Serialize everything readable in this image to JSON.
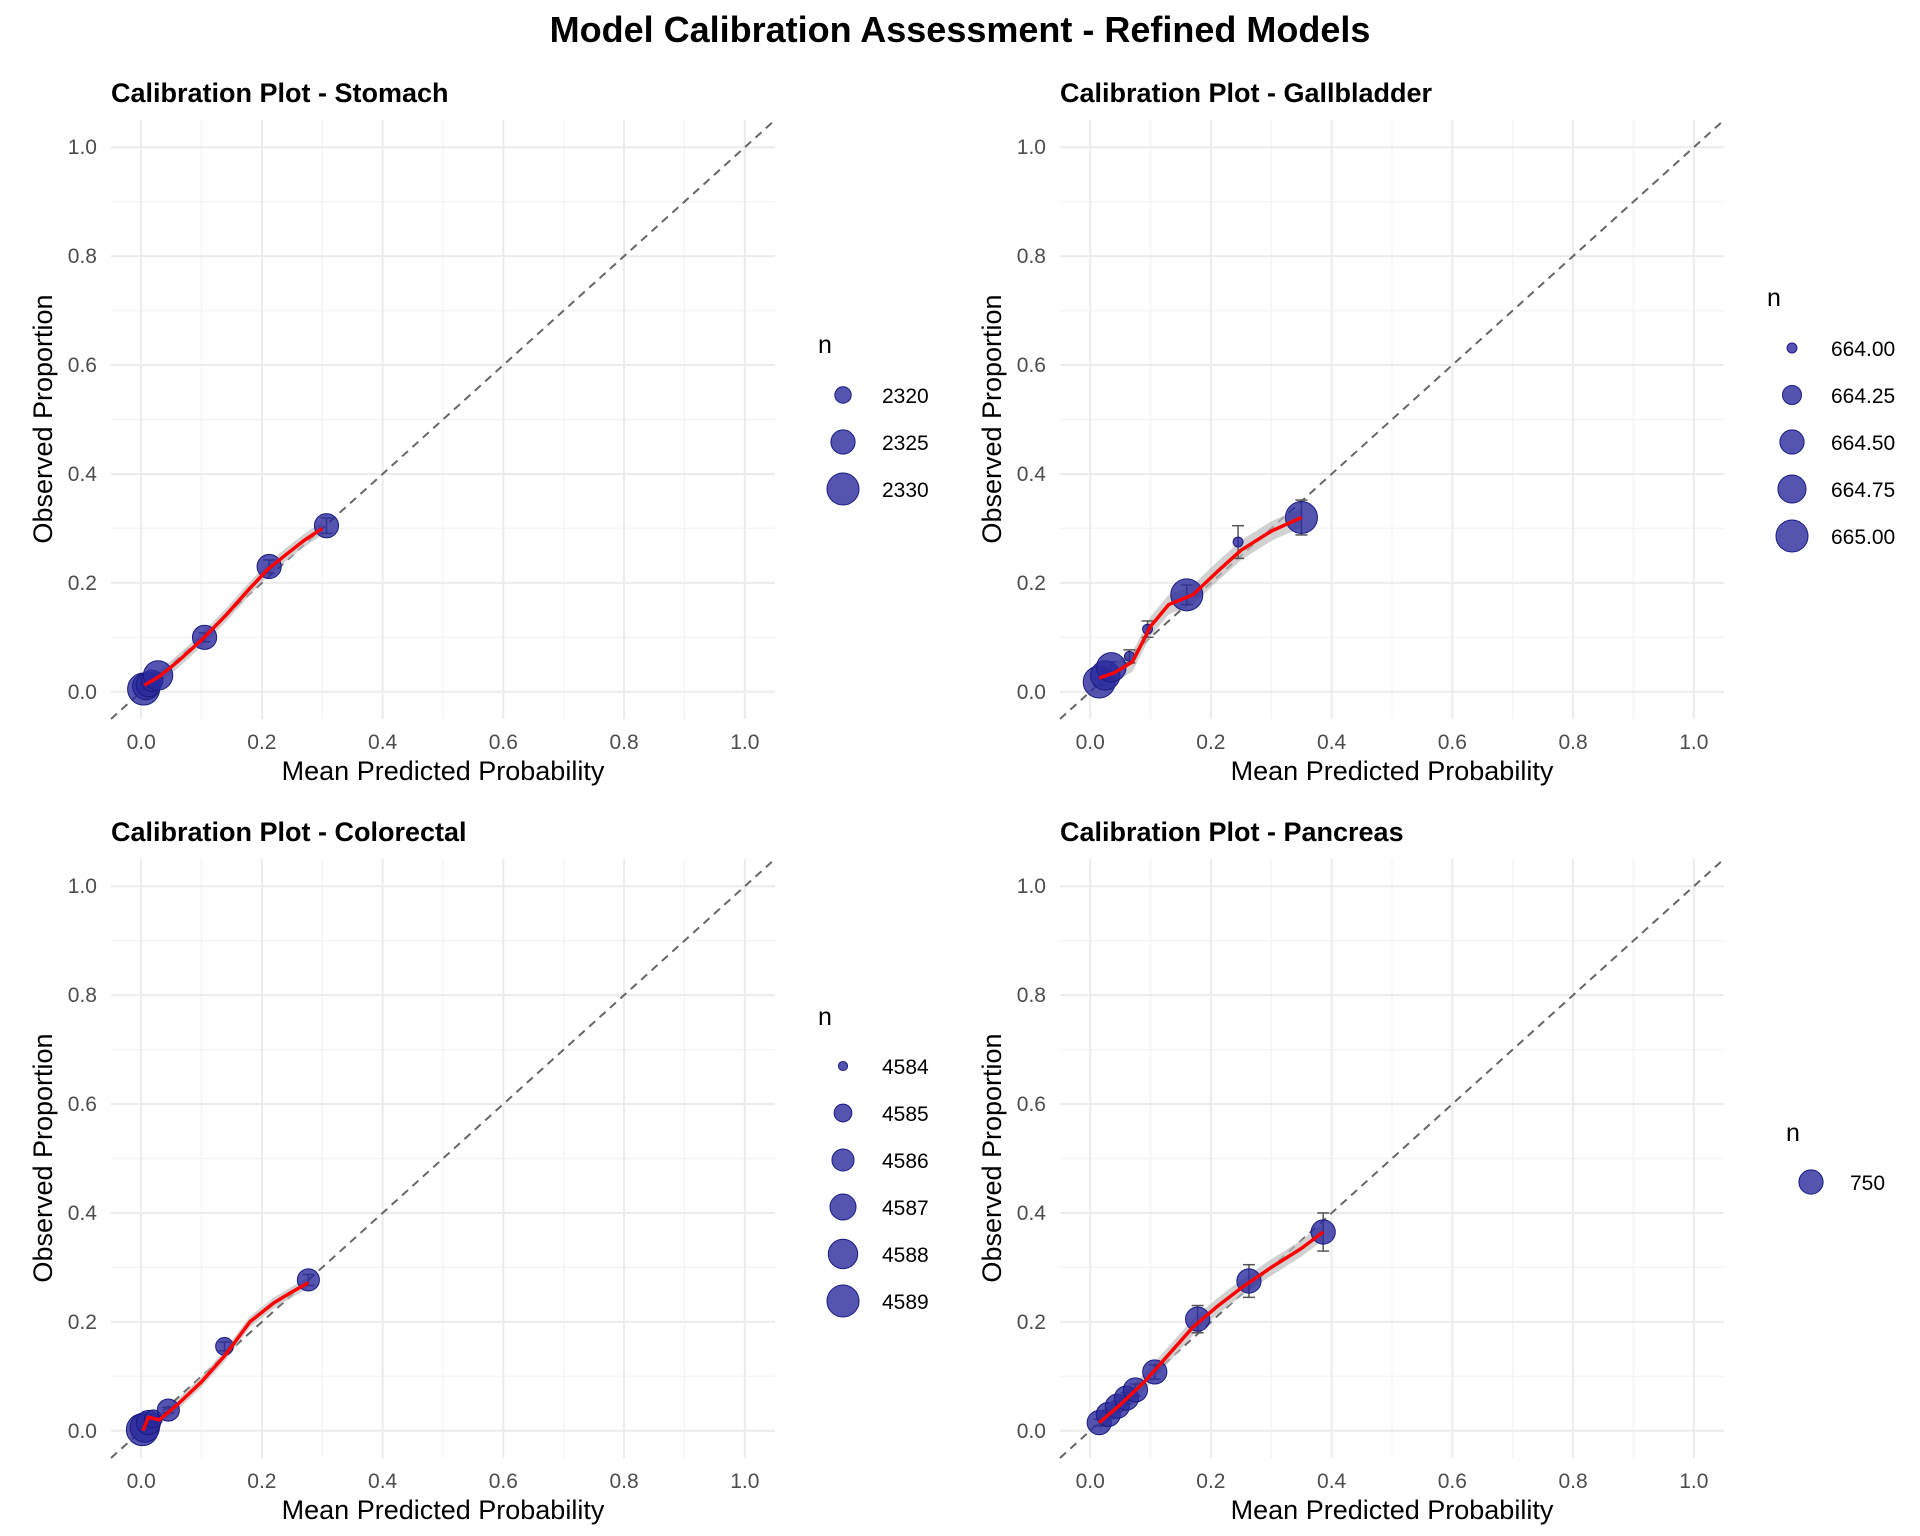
{
  "title": "Model Calibration Assessment - Refined Models",
  "colors": {
    "point_fill": "#2b2b9e",
    "point_stroke": "#1a1a80",
    "smooth_line": "#ff0000",
    "ribbon": "#bdbdbd",
    "reference_line": "#666666",
    "grid_major": "#ebebeb",
    "grid_minor": "#f5f5f5"
  },
  "chart_data": [
    {
      "type": "scatter",
      "title": "Calibration Plot - Stomach",
      "xlabel": "Mean Predicted Probability",
      "ylabel": "Observed Proportion",
      "xlim": [
        -0.05,
        1.05
      ],
      "ylim": [
        -0.05,
        1.05
      ],
      "xticks": [
        "0.0",
        "0.2",
        "0.4",
        "0.6",
        "0.8",
        "1.0"
      ],
      "yticks": [
        "0.0",
        "0.2",
        "0.4",
        "0.6",
        "0.8",
        "1.0"
      ],
      "reference_line": "y = x",
      "legend": {
        "title": "n",
        "entries": [
          {
            "label": "2320",
            "size": 0.4
          },
          {
            "label": "2325",
            "size": 0.7
          },
          {
            "label": "2330",
            "size": 1.0
          }
        ]
      },
      "points": [
        {
          "x": 0.004,
          "y": 0.005,
          "size": 1.0,
          "err": 0.002
        },
        {
          "x": 0.008,
          "y": 0.01,
          "size": 0.8,
          "err": 0.003
        },
        {
          "x": 0.012,
          "y": 0.013,
          "size": 0.7,
          "err": 0.003
        },
        {
          "x": 0.018,
          "y": 0.02,
          "size": 0.6,
          "err": 0.004
        },
        {
          "x": 0.028,
          "y": 0.03,
          "size": 0.9,
          "err": 0.005
        },
        {
          "x": 0.105,
          "y": 0.1,
          "size": 0.7,
          "err": 0.008
        },
        {
          "x": 0.212,
          "y": 0.23,
          "size": 0.7,
          "err": 0.012
        },
        {
          "x": 0.307,
          "y": 0.305,
          "size": 0.7,
          "err": 0.014
        }
      ],
      "smooth": [
        [
          0.005,
          0.012
        ],
        [
          0.03,
          0.028
        ],
        [
          0.06,
          0.055
        ],
        [
          0.1,
          0.095
        ],
        [
          0.14,
          0.14
        ],
        [
          0.18,
          0.19
        ],
        [
          0.21,
          0.225
        ],
        [
          0.24,
          0.252
        ],
        [
          0.27,
          0.278
        ],
        [
          0.3,
          0.3
        ]
      ],
      "ribbon_halfwidth": 0.012
    },
    {
      "type": "scatter",
      "title": "Calibration Plot - Gallbladder",
      "xlabel": "Mean Predicted Probability",
      "ylabel": "Observed Proportion",
      "xlim": [
        -0.05,
        1.05
      ],
      "ylim": [
        -0.05,
        1.05
      ],
      "xticks": [
        "0.0",
        "0.2",
        "0.4",
        "0.6",
        "0.8",
        "1.0"
      ],
      "yticks": [
        "0.0",
        "0.2",
        "0.4",
        "0.6",
        "0.8",
        "1.0"
      ],
      "reference_line": "y = x",
      "legend": {
        "title": "n",
        "entries": [
          {
            "label": "664.00",
            "size": 0.15
          },
          {
            "label": "664.25",
            "size": 0.5
          },
          {
            "label": "664.50",
            "size": 0.7
          },
          {
            "label": "664.75",
            "size": 0.85
          },
          {
            "label": "665.00",
            "size": 1.0
          }
        ]
      },
      "points": [
        {
          "x": 0.015,
          "y": 0.018,
          "size": 1.0,
          "err": 0.006
        },
        {
          "x": 0.025,
          "y": 0.03,
          "size": 0.9,
          "err": 0.008
        },
        {
          "x": 0.035,
          "y": 0.045,
          "size": 0.9,
          "err": 0.01
        },
        {
          "x": 0.065,
          "y": 0.065,
          "size": 0.15,
          "err": 0.012
        },
        {
          "x": 0.095,
          "y": 0.115,
          "size": 0.15,
          "err": 0.015
        },
        {
          "x": 0.16,
          "y": 0.178,
          "size": 1.0,
          "err": 0.018
        },
        {
          "x": 0.245,
          "y": 0.275,
          "size": 0.15,
          "err": 0.03
        },
        {
          "x": 0.35,
          "y": 0.32,
          "size": 1.0,
          "err": 0.032
        }
      ],
      "smooth": [
        [
          0.015,
          0.025
        ],
        [
          0.04,
          0.035
        ],
        [
          0.07,
          0.055
        ],
        [
          0.1,
          0.12
        ],
        [
          0.13,
          0.16
        ],
        [
          0.17,
          0.178
        ],
        [
          0.21,
          0.22
        ],
        [
          0.25,
          0.26
        ],
        [
          0.3,
          0.295
        ],
        [
          0.35,
          0.32
        ]
      ],
      "ribbon_halfwidth": 0.018
    },
    {
      "type": "scatter",
      "title": "Calibration Plot - Colorectal",
      "xlabel": "Mean Predicted Probability",
      "ylabel": "Observed Proportion",
      "xlim": [
        -0.05,
        1.05
      ],
      "ylim": [
        -0.05,
        1.05
      ],
      "xticks": [
        "0.0",
        "0.2",
        "0.4",
        "0.6",
        "0.8",
        "1.0"
      ],
      "yticks": [
        "0.0",
        "0.2",
        "0.4",
        "0.6",
        "0.8",
        "1.0"
      ],
      "reference_line": "y = x",
      "legend": {
        "title": "n",
        "entries": [
          {
            "label": "4584",
            "size": 0.12
          },
          {
            "label": "4585",
            "size": 0.45
          },
          {
            "label": "4586",
            "size": 0.62
          },
          {
            "label": "4587",
            "size": 0.77
          },
          {
            "label": "4588",
            "size": 0.9
          },
          {
            "label": "4589",
            "size": 1.0
          }
        ]
      },
      "points": [
        {
          "x": 0.002,
          "y": 0.002,
          "size": 1.0,
          "err": 0.002
        },
        {
          "x": 0.006,
          "y": 0.006,
          "size": 0.9,
          "err": 0.002
        },
        {
          "x": 0.012,
          "y": 0.015,
          "size": 0.7,
          "err": 0.003
        },
        {
          "x": 0.02,
          "y": 0.022,
          "size": 0.45,
          "err": 0.004
        },
        {
          "x": 0.045,
          "y": 0.038,
          "size": 0.62,
          "err": 0.005
        },
        {
          "x": 0.138,
          "y": 0.155,
          "size": 0.45,
          "err": 0.008
        },
        {
          "x": 0.277,
          "y": 0.277,
          "size": 0.62,
          "err": 0.01
        }
      ],
      "smooth": [
        [
          0.003,
          0.0
        ],
        [
          0.012,
          0.025
        ],
        [
          0.03,
          0.02
        ],
        [
          0.06,
          0.048
        ],
        [
          0.1,
          0.09
        ],
        [
          0.14,
          0.14
        ],
        [
          0.18,
          0.2
        ],
        [
          0.22,
          0.235
        ],
        [
          0.25,
          0.255
        ],
        [
          0.277,
          0.272
        ]
      ],
      "ribbon_halfwidth": 0.01
    },
    {
      "type": "scatter",
      "title": "Calibration Plot - Pancreas",
      "xlabel": "Mean Predicted Probability",
      "ylabel": "Observed Proportion",
      "xlim": [
        -0.05,
        1.05
      ],
      "ylim": [
        -0.05,
        1.05
      ],
      "xticks": [
        "0.0",
        "0.2",
        "0.4",
        "0.6",
        "0.8",
        "1.0"
      ],
      "yticks": [
        "0.0",
        "0.2",
        "0.4",
        "0.6",
        "0.8",
        "1.0"
      ],
      "reference_line": "y = x",
      "legend": {
        "title": "n",
        "entries": [
          {
            "label": "750",
            "size": 0.7
          }
        ]
      },
      "points": [
        {
          "x": 0.015,
          "y": 0.015,
          "size": 0.7,
          "err": 0.006
        },
        {
          "x": 0.03,
          "y": 0.03,
          "size": 0.7,
          "err": 0.008
        },
        {
          "x": 0.045,
          "y": 0.045,
          "size": 0.7,
          "err": 0.009
        },
        {
          "x": 0.06,
          "y": 0.06,
          "size": 0.7,
          "err": 0.01
        },
        {
          "x": 0.075,
          "y": 0.075,
          "size": 0.7,
          "err": 0.011
        },
        {
          "x": 0.107,
          "y": 0.108,
          "size": 0.7,
          "err": 0.013
        },
        {
          "x": 0.178,
          "y": 0.205,
          "size": 0.7,
          "err": 0.025
        },
        {
          "x": 0.263,
          "y": 0.275,
          "size": 0.7,
          "err": 0.03
        },
        {
          "x": 0.386,
          "y": 0.365,
          "size": 0.7,
          "err": 0.035
        }
      ],
      "smooth": [
        [
          0.015,
          0.015
        ],
        [
          0.05,
          0.048
        ],
        [
          0.09,
          0.09
        ],
        [
          0.13,
          0.14
        ],
        [
          0.17,
          0.19
        ],
        [
          0.21,
          0.228
        ],
        [
          0.25,
          0.262
        ],
        [
          0.3,
          0.3
        ],
        [
          0.35,
          0.335
        ],
        [
          0.386,
          0.365
        ]
      ],
      "ribbon_halfwidth": 0.015
    }
  ]
}
